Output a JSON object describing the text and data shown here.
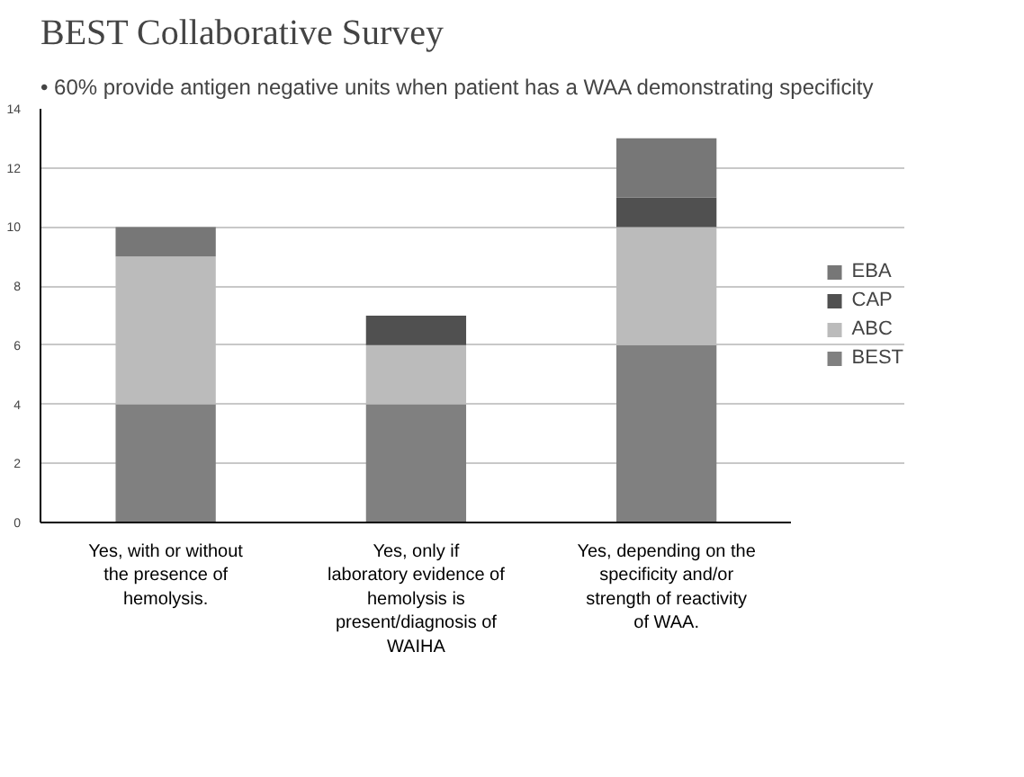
{
  "chart_data": {
    "type": "bar",
    "stacked": true,
    "title": "BEST Collaborative Survey",
    "subtitle": "• 60% provide antigen negative units when patient has a WAA demonstrating specificity",
    "categories": [
      "Yes, with or without the presence of hemolysis.",
      "Yes, only if laboratory evidence of hemolysis is present/diagnosis of WAIHA",
      "Yes, depending on the specificity and/or strength of reactivity of WAA."
    ],
    "series": [
      {
        "name": "BEST",
        "color": "#808080",
        "values": [
          4,
          4,
          6
        ]
      },
      {
        "name": "ABC",
        "color": "#bbbbbb",
        "values": [
          5,
          2,
          4
        ]
      },
      {
        "name": "CAP",
        "color": "#505050",
        "values": [
          0,
          1,
          1
        ]
      },
      {
        "name": "EBA",
        "color": "#777777",
        "values": [
          1,
          0,
          2
        ]
      }
    ],
    "ylim": [
      0,
      14
    ],
    "yticks": [
      0,
      2,
      4,
      6,
      8,
      10,
      12,
      14
    ],
    "grid": "y",
    "legend": "right"
  }
}
